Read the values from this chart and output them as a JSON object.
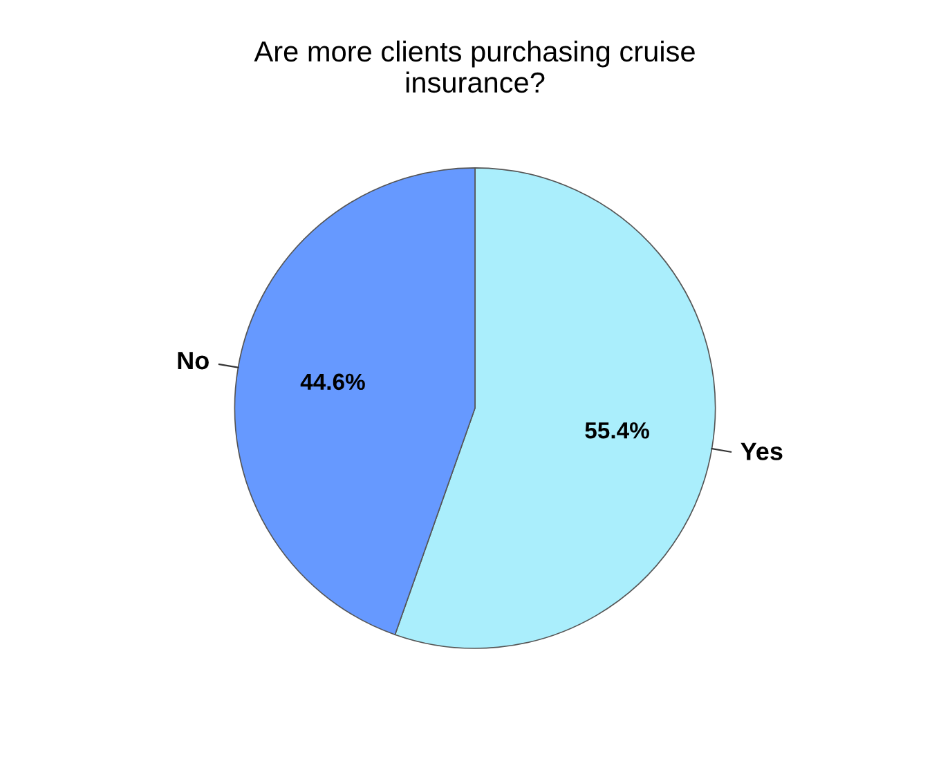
{
  "chart_data": {
    "type": "pie",
    "title": "Are more clients purchasing cruise\ninsurance?",
    "categories": [
      "Yes",
      "No"
    ],
    "values": [
      55.4,
      44.6
    ],
    "colors": [
      "#aaeefc",
      "#6699ff"
    ],
    "value_labels": [
      "55.4%",
      "44.6%"
    ]
  }
}
